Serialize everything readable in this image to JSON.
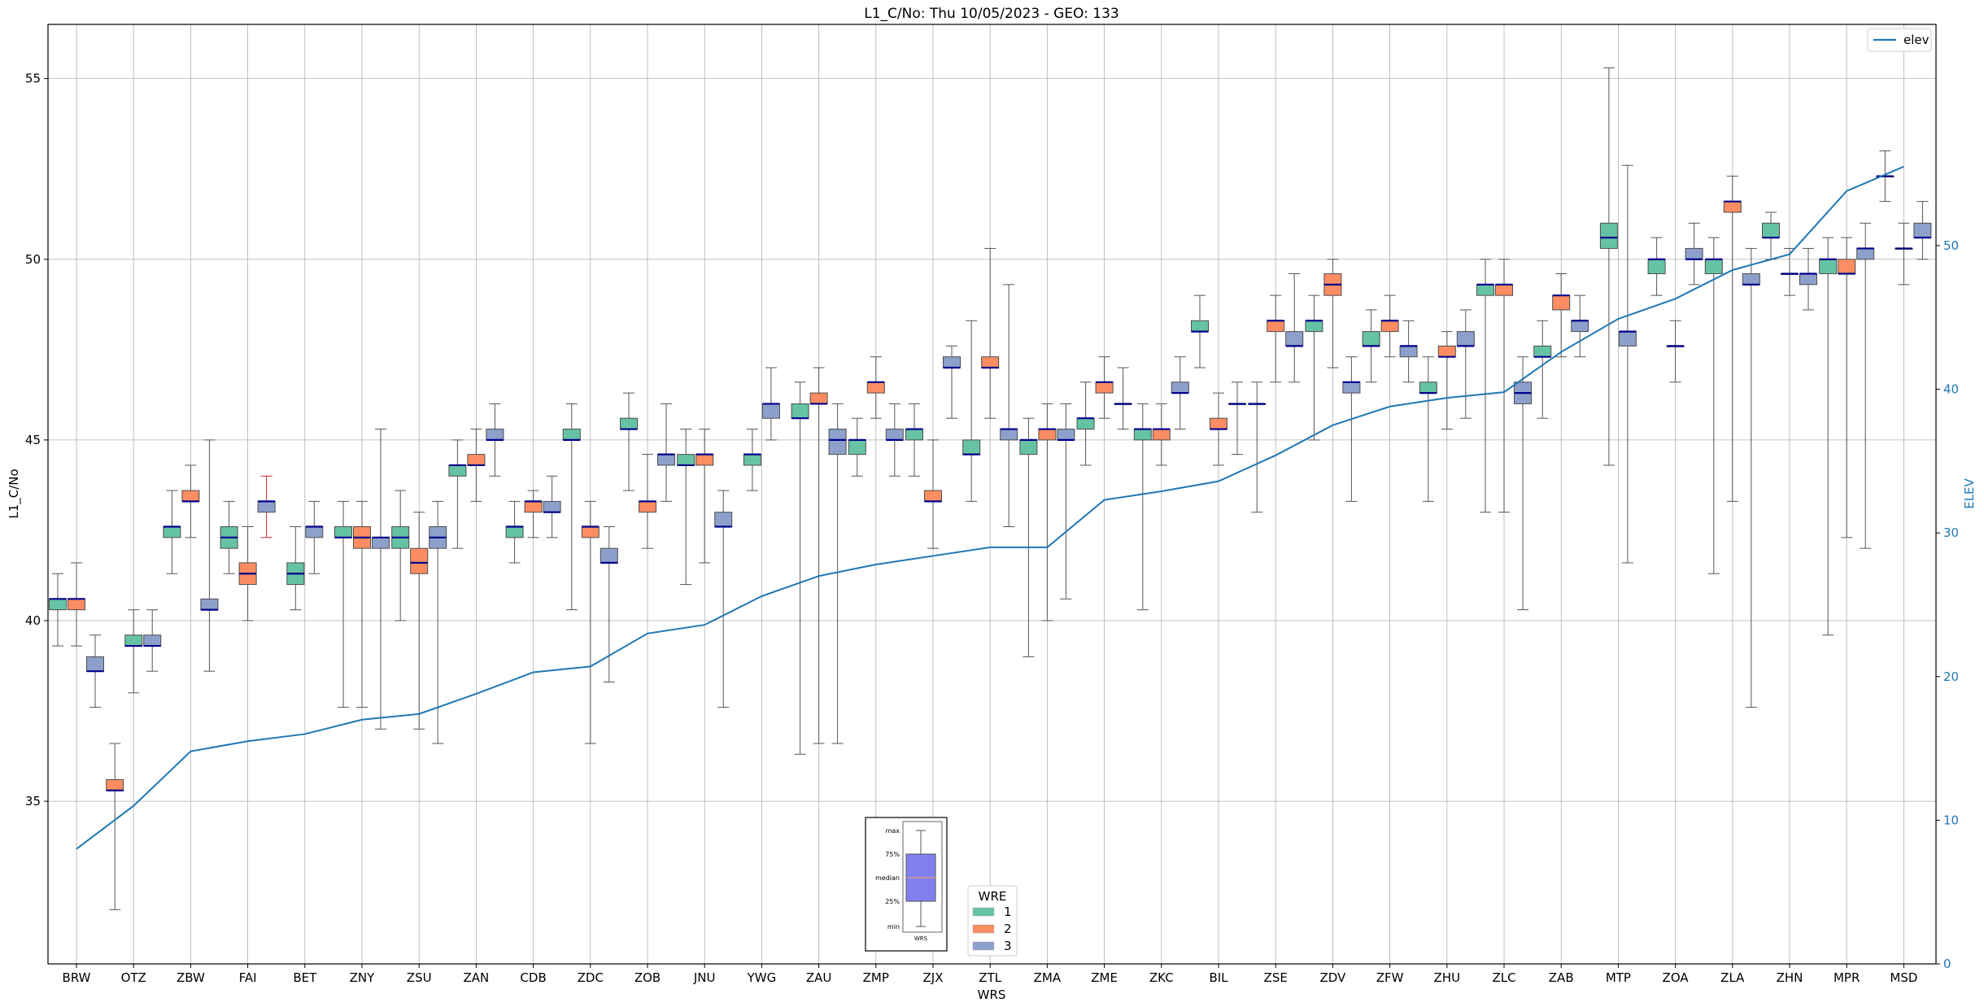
{
  "chart_data": {
    "type": "box",
    "title": "L1_C/No: Thu 10/05/2023 - GEO: 133",
    "xlabel": "WRS",
    "ylabel": "L1_C/No",
    "ylabel_right": "ELEV",
    "ylim": [
      30.5,
      56.5
    ],
    "ylim_right": [
      0,
      65.4
    ],
    "yticks": [
      35,
      40,
      45,
      50,
      55
    ],
    "yticks_right": [
      0,
      10,
      20,
      30,
      40,
      50
    ],
    "grid": true,
    "colors": {
      "1": "#66c2a5",
      "2": "#fc8d62",
      "3": "#8da0cb",
      "line": "#1f77b4",
      "median": "#00008b"
    },
    "categories": [
      "BRW",
      "OTZ",
      "ZBW",
      "FAI",
      "BET",
      "ZNY",
      "ZSU",
      "ZAN",
      "CDB",
      "ZDC",
      "ZOB",
      "JNU",
      "YWG",
      "ZAU",
      "ZMP",
      "ZJX",
      "ZTL",
      "ZMA",
      "ZME",
      "ZKC",
      "BIL",
      "ZSE",
      "ZDV",
      "ZFW",
      "ZHU",
      "ZLC",
      "ZAB",
      "MTP",
      "ZOA",
      "ZLA",
      "ZHN",
      "MPR",
      "MSD"
    ],
    "legend_line": {
      "label": "elev",
      "location": "upper right"
    },
    "legend_boxes": {
      "title": "WRE",
      "entries": [
        "1",
        "2",
        "3"
      ],
      "location": "lower center"
    },
    "inset": {
      "labels": [
        "max",
        "75%",
        "median",
        "25%",
        "min"
      ],
      "xlabel": "WRS"
    },
    "elev": [
      8,
      11,
      14.8,
      15.5,
      16,
      17,
      17.4,
      18.8,
      20.3,
      20.7,
      23,
      23.6,
      25.6,
      27,
      27.8,
      28.4,
      29,
      29,
      32.3,
      32.9,
      33.6,
      35.4,
      37.5,
      38.8,
      39.4,
      39.8,
      42.6,
      44.9,
      46.3,
      48.3,
      49.4,
      53.8,
      55.5
    ],
    "boxes": [
      {
        "station": "BRW",
        "wre": 1,
        "min": 39.3,
        "q1": 40.3,
        "median": 40.6,
        "q3": 40.6,
        "max": 41.3
      },
      {
        "station": "BRW",
        "wre": 2,
        "min": 39.3,
        "q1": 40.3,
        "median": 40.6,
        "q3": 40.6,
        "max": 41.6
      },
      {
        "station": "BRW",
        "wre": 3,
        "min": 37.6,
        "q1": 38.6,
        "median": 38.6,
        "q3": 39.0,
        "max": 39.6
      },
      {
        "station": "OTZ",
        "wre": 2,
        "min": 32.0,
        "q1": 35.3,
        "median": 35.3,
        "q3": 35.6,
        "max": 36.6
      },
      {
        "station": "OTZ",
        "wre": 1,
        "min": 38.0,
        "q1": 39.3,
        "median": 39.3,
        "q3": 39.6,
        "max": 40.3
      },
      {
        "station": "OTZ",
        "wre": 3,
        "min": 38.6,
        "q1": 39.3,
        "median": 39.3,
        "q3": 39.6,
        "max": 40.3
      },
      {
        "station": "ZBW",
        "wre": 1,
        "min": 41.3,
        "q1": 42.3,
        "median": 42.6,
        "q3": 42.6,
        "max": 43.6
      },
      {
        "station": "ZBW",
        "wre": 2,
        "min": 42.3,
        "q1": 43.3,
        "median": 43.3,
        "q3": 43.6,
        "max": 44.3
      },
      {
        "station": "ZBW",
        "wre": 3,
        "min": 38.6,
        "q1": 40.3,
        "median": 40.3,
        "q3": 40.6,
        "max": 45.0
      },
      {
        "station": "FAI",
        "wre": 1,
        "min": 41.3,
        "q1": 42.0,
        "median": 42.3,
        "q3": 42.6,
        "max": 43.3
      },
      {
        "station": "FAI",
        "wre": 2,
        "min": 40.0,
        "q1": 41.0,
        "median": 41.3,
        "q3": 41.6,
        "max": 42.6
      },
      {
        "station": "FAI",
        "wre": 3,
        "min": 42.3,
        "q1": 43.0,
        "median": 43.3,
        "q3": 43.3,
        "max": 44.0,
        "whisker_color": "#d62728"
      },
      {
        "station": "BET",
        "wre": 1,
        "min": 40.3,
        "q1": 41.0,
        "median": 41.3,
        "q3": 41.6,
        "max": 42.6
      },
      {
        "station": "BET",
        "wre": 3,
        "min": 41.3,
        "q1": 42.3,
        "median": 42.6,
        "q3": 42.6,
        "max": 43.3
      },
      {
        "station": "ZNY",
        "wre": 1,
        "min": 37.6,
        "q1": 42.3,
        "median": 42.3,
        "q3": 42.6,
        "max": 43.3
      },
      {
        "station": "ZNY",
        "wre": 2,
        "min": 37.6,
        "q1": 42.0,
        "median": 42.3,
        "q3": 42.6,
        "max": 43.3
      },
      {
        "station": "ZNY",
        "wre": 3,
        "min": 37.0,
        "q1": 42.0,
        "median": 42.3,
        "q3": 42.3,
        "max": 45.3
      },
      {
        "station": "ZSU",
        "wre": 1,
        "min": 40.0,
        "q1": 42.0,
        "median": 42.3,
        "q3": 42.6,
        "max": 43.6
      },
      {
        "station": "ZSU",
        "wre": 2,
        "min": 37.0,
        "q1": 41.3,
        "median": 41.6,
        "q3": 42.0,
        "max": 43.0
      },
      {
        "station": "ZSU",
        "wre": 3,
        "min": 36.6,
        "q1": 42.0,
        "median": 42.3,
        "q3": 42.6,
        "max": 43.3
      },
      {
        "station": "ZAN",
        "wre": 1,
        "min": 42.0,
        "q1": 44.0,
        "median": 44.3,
        "q3": 44.3,
        "max": 45.0
      },
      {
        "station": "ZAN",
        "wre": 2,
        "min": 43.3,
        "q1": 44.3,
        "median": 44.3,
        "q3": 44.6,
        "max": 45.3
      },
      {
        "station": "ZAN",
        "wre": 3,
        "min": 44.0,
        "q1": 45.0,
        "median": 45.0,
        "q3": 45.3,
        "max": 46.0
      },
      {
        "station": "CDB",
        "wre": 1,
        "min": 41.6,
        "q1": 42.3,
        "median": 42.6,
        "q3": 42.6,
        "max": 43.3
      },
      {
        "station": "CDB",
        "wre": 2,
        "min": 42.3,
        "q1": 43.0,
        "median": 43.3,
        "q3": 43.3,
        "max": 43.6
      },
      {
        "station": "CDB",
        "wre": 3,
        "min": 42.3,
        "q1": 43.0,
        "median": 43.0,
        "q3": 43.3,
        "max": 44.0
      },
      {
        "station": "ZDC",
        "wre": 1,
        "min": 40.3,
        "q1": 45.0,
        "median": 45.0,
        "q3": 45.3,
        "max": 46.0
      },
      {
        "station": "ZDC",
        "wre": 2,
        "min": 36.6,
        "q1": 42.3,
        "median": 42.6,
        "q3": 42.6,
        "max": 43.3
      },
      {
        "station": "ZDC",
        "wre": 3,
        "min": 38.3,
        "q1": 41.6,
        "median": 41.6,
        "q3": 42.0,
        "max": 42.6
      },
      {
        "station": "ZOB",
        "wre": 1,
        "min": 43.6,
        "q1": 45.3,
        "median": 45.3,
        "q3": 45.6,
        "max": 46.3
      },
      {
        "station": "ZOB",
        "wre": 2,
        "min": 42.0,
        "q1": 43.0,
        "median": 43.3,
        "q3": 43.3,
        "max": 44.6
      },
      {
        "station": "ZOB",
        "wre": 3,
        "min": 43.3,
        "q1": 44.3,
        "median": 44.6,
        "q3": 44.6,
        "max": 46.0
      },
      {
        "station": "JNU",
        "wre": 1,
        "min": 41.0,
        "q1": 44.3,
        "median": 44.3,
        "q3": 44.6,
        "max": 45.3
      },
      {
        "station": "JNU",
        "wre": 2,
        "min": 41.6,
        "q1": 44.3,
        "median": 44.6,
        "q3": 44.6,
        "max": 45.3
      },
      {
        "station": "JNU",
        "wre": 3,
        "min": 37.6,
        "q1": 42.6,
        "median": 42.6,
        "q3": 43.0,
        "max": 43.6
      },
      {
        "station": "YWG",
        "wre": 1,
        "min": 43.6,
        "q1": 44.3,
        "median": 44.6,
        "q3": 44.6,
        "max": 45.3
      },
      {
        "station": "YWG",
        "wre": 3,
        "min": 45.0,
        "q1": 45.6,
        "median": 46.0,
        "q3": 46.0,
        "max": 47.0
      },
      {
        "station": "ZAU",
        "wre": 1,
        "min": 36.3,
        "q1": 45.6,
        "median": 45.6,
        "q3": 46.0,
        "max": 46.6
      },
      {
        "station": "ZAU",
        "wre": 2,
        "min": 36.6,
        "q1": 46.0,
        "median": 46.0,
        "q3": 46.3,
        "max": 47.0
      },
      {
        "station": "ZAU",
        "wre": 3,
        "min": 36.6,
        "q1": 44.6,
        "median": 45.0,
        "q3": 45.3,
        "max": 46.0
      },
      {
        "station": "ZMP",
        "wre": 1,
        "min": 44.0,
        "q1": 44.6,
        "median": 45.0,
        "q3": 45.0,
        "max": 45.6
      },
      {
        "station": "ZMP",
        "wre": 2,
        "min": 45.6,
        "q1": 46.3,
        "median": 46.6,
        "q3": 46.6,
        "max": 47.3
      },
      {
        "station": "ZMP",
        "wre": 3,
        "min": 44.0,
        "q1": 45.0,
        "median": 45.0,
        "q3": 45.3,
        "max": 46.0
      },
      {
        "station": "ZJX",
        "wre": 1,
        "min": 44.0,
        "q1": 45.0,
        "median": 45.3,
        "q3": 45.3,
        "max": 46.0
      },
      {
        "station": "ZJX",
        "wre": 2,
        "min": 42.0,
        "q1": 43.3,
        "median": 43.3,
        "q3": 43.6,
        "max": 45.0
      },
      {
        "station": "ZJX",
        "wre": 3,
        "min": 45.6,
        "q1": 47.0,
        "median": 47.0,
        "q3": 47.3,
        "max": 47.6
      },
      {
        "station": "ZTL",
        "wre": 1,
        "min": 43.3,
        "q1": 44.6,
        "median": 44.6,
        "q3": 45.0,
        "max": 48.3
      },
      {
        "station": "ZTL",
        "wre": 2,
        "min": 45.6,
        "q1": 47.0,
        "median": 47.0,
        "q3": 47.3,
        "max": 50.3
      },
      {
        "station": "ZTL",
        "wre": 3,
        "min": 42.6,
        "q1": 45.0,
        "median": 45.3,
        "q3": 45.3,
        "max": 49.3
      },
      {
        "station": "ZMA",
        "wre": 1,
        "min": 39.0,
        "q1": 44.6,
        "median": 45.0,
        "q3": 45.0,
        "max": 45.6
      },
      {
        "station": "ZMA",
        "wre": 2,
        "min": 40.0,
        "q1": 45.0,
        "median": 45.3,
        "q3": 45.3,
        "max": 46.0
      },
      {
        "station": "ZMA",
        "wre": 3,
        "min": 40.6,
        "q1": 45.0,
        "median": 45.0,
        "q3": 45.3,
        "max": 46.0
      },
      {
        "station": "ZME",
        "wre": 1,
        "min": 44.3,
        "q1": 45.3,
        "median": 45.6,
        "q3": 45.6,
        "max": 46.6
      },
      {
        "station": "ZME",
        "wre": 2,
        "min": 45.6,
        "q1": 46.3,
        "median": 46.6,
        "q3": 46.6,
        "max": 47.3
      },
      {
        "station": "ZME",
        "wre": 3,
        "min": 45.3,
        "q1": 46.0,
        "median": 46.0,
        "q3": 46.0,
        "max": 47.0
      },
      {
        "station": "ZKC",
        "wre": 1,
        "min": 40.3,
        "q1": 45.0,
        "median": 45.3,
        "q3": 45.3,
        "max": 46.0
      },
      {
        "station": "ZKC",
        "wre": 2,
        "min": 44.3,
        "q1": 45.0,
        "median": 45.3,
        "q3": 45.3,
        "max": 46.0
      },
      {
        "station": "ZKC",
        "wre": 3,
        "min": 45.3,
        "q1": 46.3,
        "median": 46.3,
        "q3": 46.6,
        "max": 47.3
      },
      {
        "station": "BIL",
        "wre": 1,
        "min": 47.0,
        "q1": 48.0,
        "median": 48.0,
        "q3": 48.3,
        "max": 49.0
      },
      {
        "station": "BIL",
        "wre": 2,
        "min": 44.3,
        "q1": 45.3,
        "median": 45.3,
        "q3": 45.6,
        "max": 46.3
      },
      {
        "station": "BIL",
        "wre": 3,
        "min": 44.6,
        "q1": 46.0,
        "median": 46.0,
        "q3": 46.0,
        "max": 46.6
      },
      {
        "station": "ZSE",
        "wre": 3,
        "min": 43.0,
        "q1": 46.0,
        "median": 46.0,
        "q3": 46.0,
        "max": 46.6
      },
      {
        "station": "ZSE",
        "wre": 2,
        "min": 46.6,
        "q1": 48.0,
        "median": 48.3,
        "q3": 48.3,
        "max": 49.0
      },
      {
        "station": "ZSE",
        "wre": 3,
        "min": 46.6,
        "q1": 47.6,
        "median": 47.6,
        "q3": 48.0,
        "max": 49.6
      },
      {
        "station": "ZDV",
        "wre": 1,
        "min": 45.0,
        "q1": 48.0,
        "median": 48.3,
        "q3": 48.3,
        "max": 49.0
      },
      {
        "station": "ZDV",
        "wre": 2,
        "min": 47.0,
        "q1": 49.0,
        "median": 49.3,
        "q3": 49.6,
        "max": 50.0
      },
      {
        "station": "ZDV",
        "wre": 3,
        "min": 43.3,
        "q1": 46.3,
        "median": 46.6,
        "q3": 46.6,
        "max": 47.3
      },
      {
        "station": "ZFW",
        "wre": 1,
        "min": 46.6,
        "q1": 47.6,
        "median": 47.6,
        "q3": 48.0,
        "max": 48.6
      },
      {
        "station": "ZFW",
        "wre": 2,
        "min": 47.3,
        "q1": 48.0,
        "median": 48.3,
        "q3": 48.3,
        "max": 49.0
      },
      {
        "station": "ZFW",
        "wre": 3,
        "min": 46.6,
        "q1": 47.3,
        "median": 47.6,
        "q3": 47.6,
        "max": 48.3
      },
      {
        "station": "ZHU",
        "wre": 1,
        "min": 43.3,
        "q1": 46.3,
        "median": 46.3,
        "q3": 46.6,
        "max": 47.3
      },
      {
        "station": "ZHU",
        "wre": 2,
        "min": 45.3,
        "q1": 47.3,
        "median": 47.3,
        "q3": 47.6,
        "max": 48.0
      },
      {
        "station": "ZHU",
        "wre": 3,
        "min": 45.6,
        "q1": 47.6,
        "median": 47.6,
        "q3": 48.0,
        "max": 48.6
      },
      {
        "station": "ZLC",
        "wre": 1,
        "min": 43.0,
        "q1": 49.0,
        "median": 49.3,
        "q3": 49.3,
        "max": 50.0
      },
      {
        "station": "ZLC",
        "wre": 2,
        "min": 43.0,
        "q1": 49.0,
        "median": 49.3,
        "q3": 49.3,
        "max": 50.0
      },
      {
        "station": "ZLC",
        "wre": 3,
        "min": 40.3,
        "q1": 46.0,
        "median": 46.3,
        "q3": 46.6,
        "max": 47.3
      },
      {
        "station": "ZAB",
        "wre": 1,
        "min": 45.6,
        "q1": 47.3,
        "median": 47.3,
        "q3": 47.6,
        "max": 48.3
      },
      {
        "station": "ZAB",
        "wre": 2,
        "min": 47.3,
        "q1": 48.6,
        "median": 49.0,
        "q3": 49.0,
        "max": 49.6
      },
      {
        "station": "ZAB",
        "wre": 3,
        "min": 47.3,
        "q1": 48.0,
        "median": 48.3,
        "q3": 48.3,
        "max": 49.0
      },
      {
        "station": "MTP",
        "wre": 1,
        "min": 44.3,
        "q1": 50.3,
        "median": 50.6,
        "q3": 51.0,
        "max": 55.3
      },
      {
        "station": "MTP",
        "wre": 3,
        "min": 41.6,
        "q1": 47.6,
        "median": 48.0,
        "q3": 48.0,
        "max": 52.6
      },
      {
        "station": "ZOA",
        "wre": 1,
        "min": 49.0,
        "q1": 49.6,
        "median": 50.0,
        "q3": 50.0,
        "max": 50.6
      },
      {
        "station": "ZOA",
        "wre": 3,
        "min": 46.6,
        "q1": 47.6,
        "median": 47.6,
        "q3": 47.6,
        "max": 48.3
      },
      {
        "station": "ZOA",
        "wre": 3,
        "min": 49.3,
        "q1": 50.0,
        "median": 50.0,
        "q3": 50.3,
        "max": 51.0
      },
      {
        "station": "ZLA",
        "wre": 1,
        "min": 41.3,
        "q1": 49.6,
        "median": 50.0,
        "q3": 50.0,
        "max": 50.6
      },
      {
        "station": "ZLA",
        "wre": 2,
        "min": 43.3,
        "q1": 51.3,
        "median": 51.6,
        "q3": 51.6,
        "max": 52.3
      },
      {
        "station": "ZLA",
        "wre": 3,
        "min": 37.6,
        "q1": 49.3,
        "median": 49.3,
        "q3": 49.6,
        "max": 50.3
      },
      {
        "station": "ZHN",
        "wre": 1,
        "min": 50.0,
        "q1": 50.6,
        "median": 50.6,
        "q3": 51.0,
        "max": 51.3
      },
      {
        "station": "ZHN",
        "wre": 3,
        "min": 49.0,
        "q1": 49.6,
        "median": 49.6,
        "q3": 49.6,
        "max": 50.3
      },
      {
        "station": "ZHN",
        "wre": 3,
        "min": 48.6,
        "q1": 49.3,
        "median": 49.6,
        "q3": 49.6,
        "max": 50.3
      },
      {
        "station": "MPR",
        "wre": 1,
        "min": 39.6,
        "q1": 49.6,
        "median": 50.0,
        "q3": 50.0,
        "max": 50.6
      },
      {
        "station": "MPR",
        "wre": 2,
        "min": 42.3,
        "q1": 49.6,
        "median": 49.6,
        "q3": 50.0,
        "max": 50.6
      },
      {
        "station": "MPR",
        "wre": 3,
        "min": 42.0,
        "q1": 50.0,
        "median": 50.3,
        "q3": 50.3,
        "max": 51.0
      },
      {
        "station": "MSD",
        "wre": 3,
        "min": 51.6,
        "q1": 52.3,
        "median": 52.3,
        "q3": 52.3,
        "max": 53.0
      },
      {
        "station": "MSD",
        "wre": 3,
        "min": 49.3,
        "q1": 50.3,
        "median": 50.3,
        "q3": 50.3,
        "max": 51.0
      },
      {
        "station": "MSD",
        "wre": 3,
        "min": 50.0,
        "q1": 50.6,
        "median": 50.6,
        "q3": 51.0,
        "max": 51.6
      }
    ]
  }
}
